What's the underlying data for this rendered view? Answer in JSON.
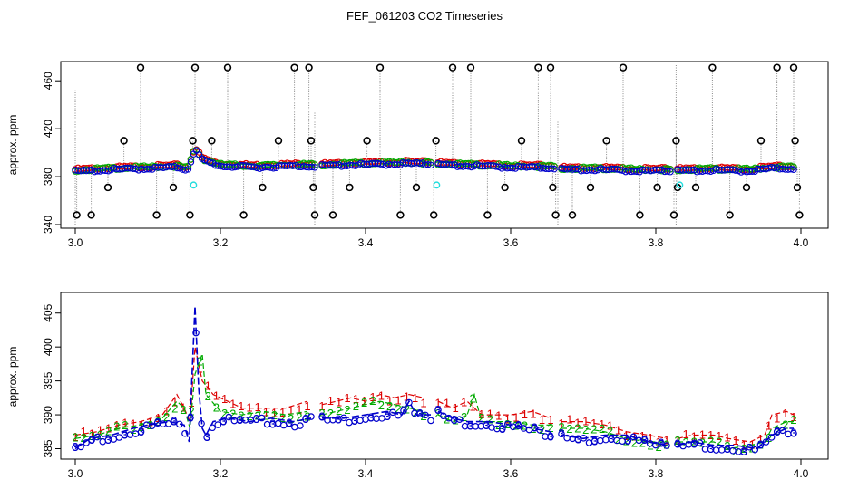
{
  "figure_title": "FEF_061203  CO2 Timeseries",
  "colors": {
    "black": "#000000",
    "red": "#dd0000",
    "green": "#00aa00",
    "blue": "#0000cc",
    "cyan": "#22dddd",
    "stem": "#888888"
  },
  "chart_data": [
    {
      "type": "scatter",
      "ylabel": "approx. ppm",
      "xlim": [
        3.0,
        4.0
      ],
      "ylim": [
        340,
        473
      ],
      "x_ticks": [
        "3.0",
        "3.2",
        "3.4",
        "3.6",
        "3.8",
        "4.0"
      ],
      "x_tick_values": [
        3.0,
        3.2,
        3.4,
        3.6,
        3.8,
        4.0
      ],
      "y_ticks": [
        "340",
        "380",
        "420",
        "460"
      ],
      "y_tick_values": [
        340,
        380,
        420,
        460
      ],
      "series_colors": [
        "#dd0000",
        "#00aa00",
        "#0000cc"
      ],
      "baseline_segments": [
        [
          [
            3.0,
            385.5
          ],
          [
            3.05,
            387
          ],
          [
            3.1,
            388
          ],
          [
            3.14,
            389
          ],
          [
            3.155,
            387
          ],
          [
            3.165,
            404
          ],
          [
            3.175,
            395
          ],
          [
            3.2,
            390
          ],
          [
            3.25,
            389
          ],
          [
            3.3,
            390
          ],
          [
            3.33,
            390
          ]
        ],
        [
          [
            3.34,
            390
          ],
          [
            3.38,
            391
          ],
          [
            3.42,
            391.5
          ],
          [
            3.46,
            392
          ],
          [
            3.49,
            391.5
          ]
        ],
        [
          [
            3.5,
            391
          ],
          [
            3.55,
            390
          ],
          [
            3.6,
            389
          ],
          [
            3.66,
            388.5
          ]
        ],
        [
          [
            3.67,
            387
          ],
          [
            3.72,
            387
          ],
          [
            3.78,
            386
          ],
          [
            3.82,
            386
          ]
        ],
        [
          [
            3.83,
            386
          ],
          [
            3.88,
            386.5
          ],
          [
            3.93,
            386
          ],
          [
            3.96,
            388
          ],
          [
            3.99,
            388
          ]
        ]
      ],
      "outliers": {
        "x": [
          3.002,
          3.022,
          3.045,
          3.067,
          3.09,
          3.112,
          3.135,
          3.158,
          3.162,
          3.165,
          3.188,
          3.21,
          3.232,
          3.258,
          3.28,
          3.302,
          3.322,
          3.325,
          3.328,
          3.33,
          3.355,
          3.378,
          3.402,
          3.42,
          3.448,
          3.47,
          3.494,
          3.497,
          3.52,
          3.545,
          3.568,
          3.592,
          3.615,
          3.638,
          3.655,
          3.658,
          3.662,
          3.685,
          3.71,
          3.732,
          3.755,
          3.778,
          3.802,
          3.825,
          3.828,
          3.83,
          3.855,
          3.878,
          3.902,
          3.925,
          3.945,
          3.967,
          3.99,
          3.992,
          3.995,
          3.998
        ],
        "y": [
          348,
          348,
          371,
          410,
          471,
          348,
          371,
          348,
          410,
          471,
          410,
          471,
          348,
          371,
          410,
          471,
          471,
          410,
          371,
          348,
          348,
          371,
          410,
          471,
          348,
          371,
          348,
          410,
          471,
          471,
          348,
          371,
          410,
          471,
          471,
          371,
          348,
          348,
          371,
          410,
          471,
          348,
          371,
          348,
          410,
          371,
          371,
          471,
          348,
          371,
          410,
          471,
          471,
          410,
          371,
          348
        ]
      },
      "cyan_points": {
        "x": [
          3.163,
          3.498,
          3.833
        ],
        "y": [
          373,
          373,
          373
        ]
      },
      "stems": [
        {
          "x": 3.0,
          "from": 340,
          "to": 452
        },
        {
          "x": 3.33,
          "from": 340,
          "to": 434
        },
        {
          "x": 3.665,
          "from": 340,
          "to": 428
        },
        {
          "x": 3.828,
          "from": 340,
          "to": 473
        }
      ]
    },
    {
      "type": "line",
      "ylabel": "approx. ppm",
      "xlim": [
        3.0,
        4.0
      ],
      "ylim": [
        384,
        407.5
      ],
      "x_ticks": [
        "3.0",
        "3.2",
        "3.4",
        "3.6",
        "3.8",
        "4.0"
      ],
      "x_tick_values": [
        3.0,
        3.2,
        3.4,
        3.6,
        3.8,
        4.0
      ],
      "y_ticks": [
        "385",
        "390",
        "395",
        "400",
        "405"
      ],
      "y_tick_values": [
        385,
        390,
        395,
        400,
        405
      ],
      "series": [
        {
          "name": "1",
          "color": "#dd0000",
          "segments": [
            [
              [
                3.0,
                387
              ],
              [
                3.03,
                387.5
              ],
              [
                3.06,
                388.5
              ],
              [
                3.09,
                389
              ],
              [
                3.12,
                390
              ],
              [
                3.14,
                393
              ],
              [
                3.15,
                391
              ],
              [
                3.158,
                389
              ],
              [
                3.165,
                400
              ],
              [
                3.175,
                395
              ],
              [
                3.19,
                393
              ],
              [
                3.21,
                392
              ],
              [
                3.23,
                391
              ],
              [
                3.26,
                391
              ],
              [
                3.29,
                391
              ],
              [
                3.32,
                392
              ]
            ],
            [
              [
                3.34,
                391.5
              ],
              [
                3.36,
                392
              ],
              [
                3.38,
                392.5
              ],
              [
                3.4,
                392
              ],
              [
                3.42,
                393
              ],
              [
                3.44,
                392.5
              ],
              [
                3.46,
                393
              ],
              [
                3.48,
                392.5
              ]
            ],
            [
              [
                3.5,
                392
              ],
              [
                3.52,
                391
              ],
              [
                3.54,
                392
              ],
              [
                3.56,
                390
              ],
              [
                3.6,
                390
              ],
              [
                3.63,
                390.5
              ],
              [
                3.655,
                389.5
              ]
            ],
            [
              [
                3.67,
                389
              ],
              [
                3.7,
                389
              ],
              [
                3.73,
                388.5
              ],
              [
                3.76,
                387.5
              ],
              [
                3.79,
                387
              ],
              [
                3.815,
                386.5
              ]
            ],
            [
              [
                3.83,
                386.5
              ],
              [
                3.85,
                387
              ],
              [
                3.88,
                387
              ],
              [
                3.9,
                386.5
              ],
              [
                3.93,
                386
              ],
              [
                3.95,
                387
              ],
              [
                3.96,
                390
              ],
              [
                3.98,
                390.5
              ],
              [
                3.99,
                390
              ]
            ]
          ]
        },
        {
          "name": "2",
          "color": "#00aa00",
          "segments": [
            [
              [
                3.0,
                386.5
              ],
              [
                3.03,
                387
              ],
              [
                3.06,
                388
              ],
              [
                3.09,
                388.5
              ],
              [
                3.12,
                389.5
              ],
              [
                3.14,
                392
              ],
              [
                3.15,
                391
              ],
              [
                3.158,
                388
              ],
              [
                3.165,
                396
              ],
              [
                3.175,
                399
              ],
              [
                3.18,
                393
              ],
              [
                3.2,
                390.5
              ],
              [
                3.23,
                390
              ],
              [
                3.26,
                390.5
              ],
              [
                3.29,
                390
              ],
              [
                3.32,
                390.5
              ]
            ],
            [
              [
                3.34,
                390
              ],
              [
                3.36,
                390.5
              ],
              [
                3.38,
                391
              ],
              [
                3.4,
                391.5
              ],
              [
                3.42,
                392
              ],
              [
                3.44,
                391.5
              ],
              [
                3.46,
                391
              ],
              [
                3.48,
                390.5
              ]
            ],
            [
              [
                3.5,
                390
              ],
              [
                3.52,
                389
              ],
              [
                3.54,
                390
              ],
              [
                3.55,
                393
              ],
              [
                3.56,
                389
              ],
              [
                3.6,
                389
              ],
              [
                3.63,
                388.5
              ],
              [
                3.655,
                388.5
              ]
            ],
            [
              [
                3.67,
                388
              ],
              [
                3.7,
                388
              ],
              [
                3.73,
                387.5
              ],
              [
                3.76,
                386.5
              ],
              [
                3.79,
                386
              ],
              [
                3.815,
                386
              ]
            ],
            [
              [
                3.83,
                386
              ],
              [
                3.85,
                386
              ],
              [
                3.88,
                386
              ],
              [
                3.9,
                385
              ],
              [
                3.93,
                385.5
              ],
              [
                3.95,
                386
              ],
              [
                3.96,
                388
              ],
              [
                3.98,
                389
              ],
              [
                3.99,
                389
              ]
            ]
          ]
        },
        {
          "name": "3",
          "color": "#0000cc",
          "segments": [
            [
              [
                3.0,
                385
              ],
              [
                3.02,
                386.5
              ],
              [
                3.05,
                387
              ],
              [
                3.08,
                388
              ],
              [
                3.1,
                388.5
              ],
              [
                3.13,
                389
              ],
              [
                3.15,
                388.5
              ],
              [
                3.157,
                386
              ],
              [
                3.165,
                406
              ],
              [
                3.17,
                394
              ],
              [
                3.175,
                388
              ],
              [
                3.18,
                387
              ],
              [
                3.19,
                389
              ],
              [
                3.21,
                389.5
              ],
              [
                3.24,
                389
              ],
              [
                3.27,
                389.5
              ],
              [
                3.3,
                389
              ],
              [
                3.325,
                389.5
              ]
            ],
            [
              [
                3.34,
                389.5
              ],
              [
                3.37,
                389.5
              ],
              [
                3.4,
                390
              ],
              [
                3.43,
                390.5
              ],
              [
                3.45,
                390
              ],
              [
                3.46,
                392
              ],
              [
                3.47,
                390
              ],
              [
                3.49,
                390
              ]
            ],
            [
              [
                3.5,
                390.5
              ],
              [
                3.52,
                389.5
              ],
              [
                3.54,
                389
              ],
              [
                3.57,
                389
              ],
              [
                3.6,
                388.5
              ],
              [
                3.63,
                388
              ],
              [
                3.655,
                387.5
              ]
            ],
            [
              [
                3.67,
                387
              ],
              [
                3.7,
                386.5
              ],
              [
                3.73,
                387
              ],
              [
                3.76,
                387
              ],
              [
                3.79,
                386
              ],
              [
                3.815,
                385.5
              ]
            ],
            [
              [
                3.83,
                385.5
              ],
              [
                3.85,
                386
              ],
              [
                3.88,
                385.5
              ],
              [
                3.91,
                385.5
              ],
              [
                3.94,
                385
              ],
              [
                3.96,
                387
              ],
              [
                3.98,
                388
              ],
              [
                3.99,
                388
              ]
            ]
          ]
        }
      ]
    }
  ]
}
